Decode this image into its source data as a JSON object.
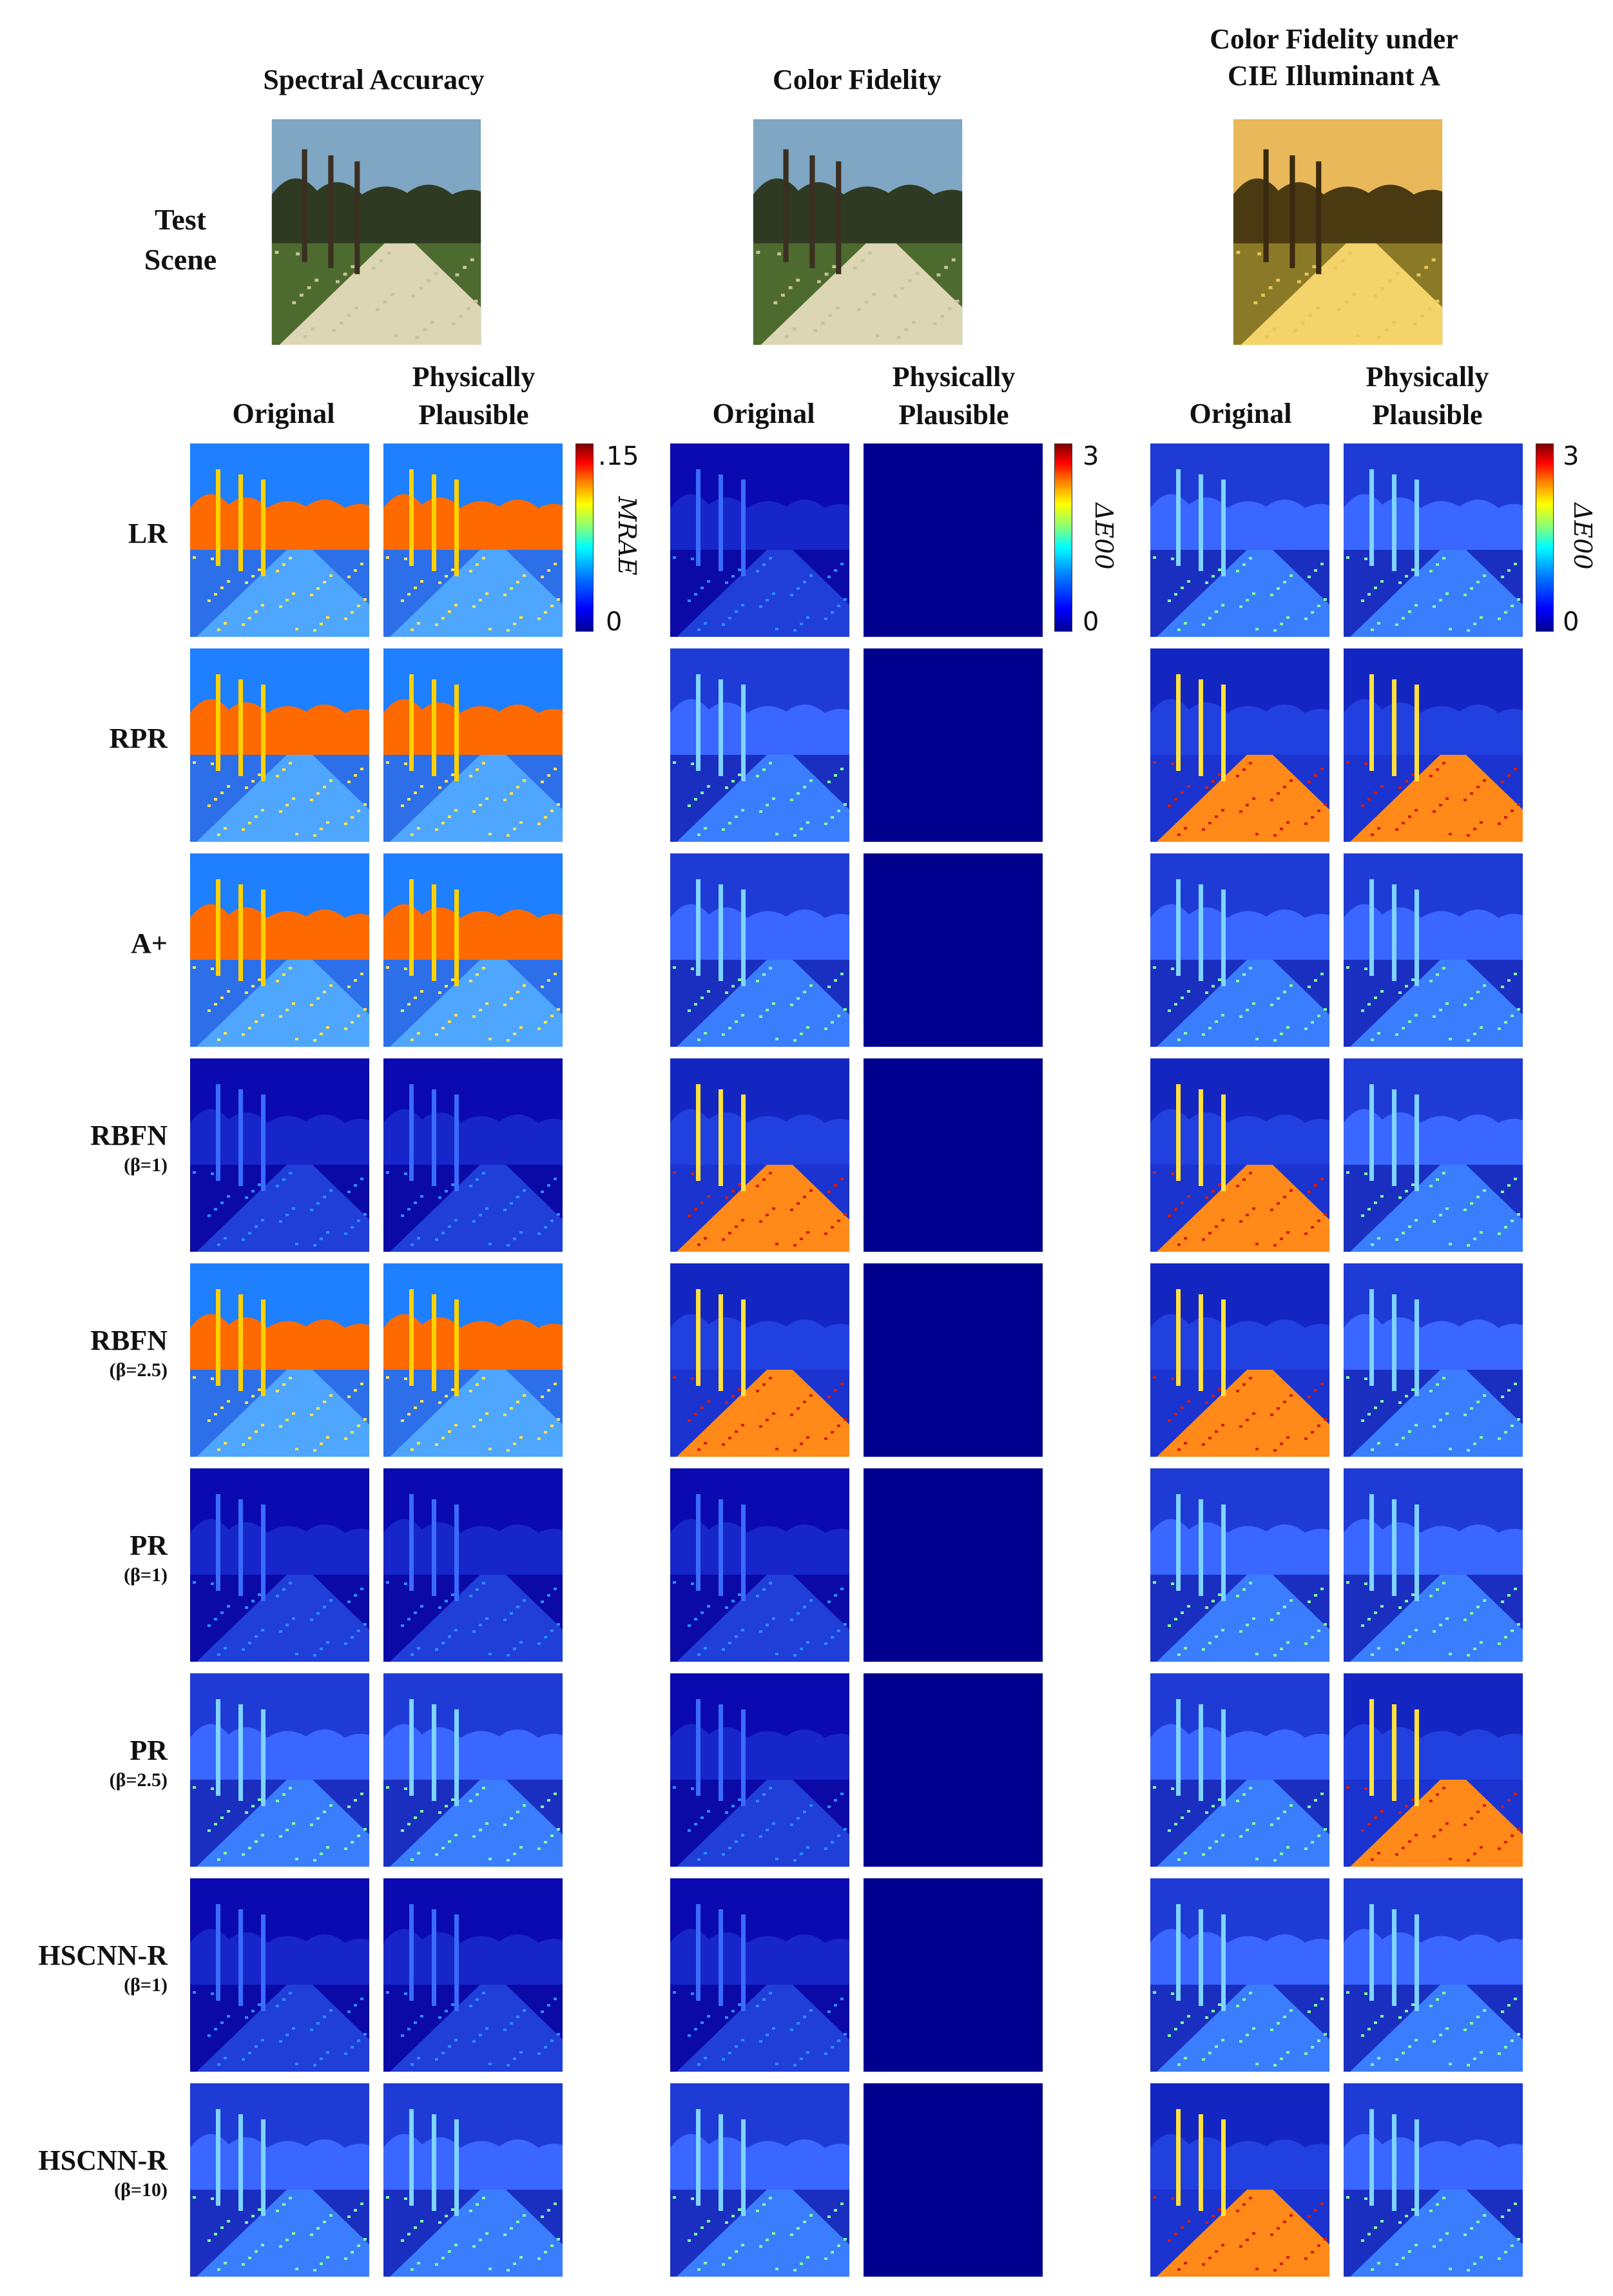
{
  "sections": [
    {
      "title": "Spectral Accuracy",
      "colorbar": {
        "max_label": ".15",
        "min_label": "0",
        "label": "MRAE"
      }
    },
    {
      "title": "Color Fidelity",
      "colorbar": {
        "max_label": "3",
        "min_label": "0",
        "label": "ΔE00"
      }
    },
    {
      "title": "Color Fidelity under\nCIE Illuminant A",
      "colorbar": {
        "max_label": "3",
        "min_label": "0",
        "label": "ΔE00"
      }
    }
  ],
  "test_scene_label": "Test\nScene",
  "column_headers": {
    "original": "Original",
    "physically_plausible": "Physically\nPlausible"
  },
  "rows": [
    {
      "method": "LR",
      "param": ""
    },
    {
      "method": "RPR",
      "param": ""
    },
    {
      "method": "A+",
      "param": ""
    },
    {
      "method": "RBFN",
      "param": "(β=1)"
    },
    {
      "method": "RBFN",
      "param": "(β=2.5)"
    },
    {
      "method": "PR",
      "param": "(β=1)"
    },
    {
      "method": "PR",
      "param": "(β=2.5)"
    },
    {
      "method": "HSCNN-R",
      "param": "(β=1)"
    },
    {
      "method": "HSCNN-R",
      "param": "(β=10)"
    }
  ],
  "colors": {
    "jet_low": "#00008f",
    "jet_high": "#7f0000",
    "background": "#ffffff"
  }
}
